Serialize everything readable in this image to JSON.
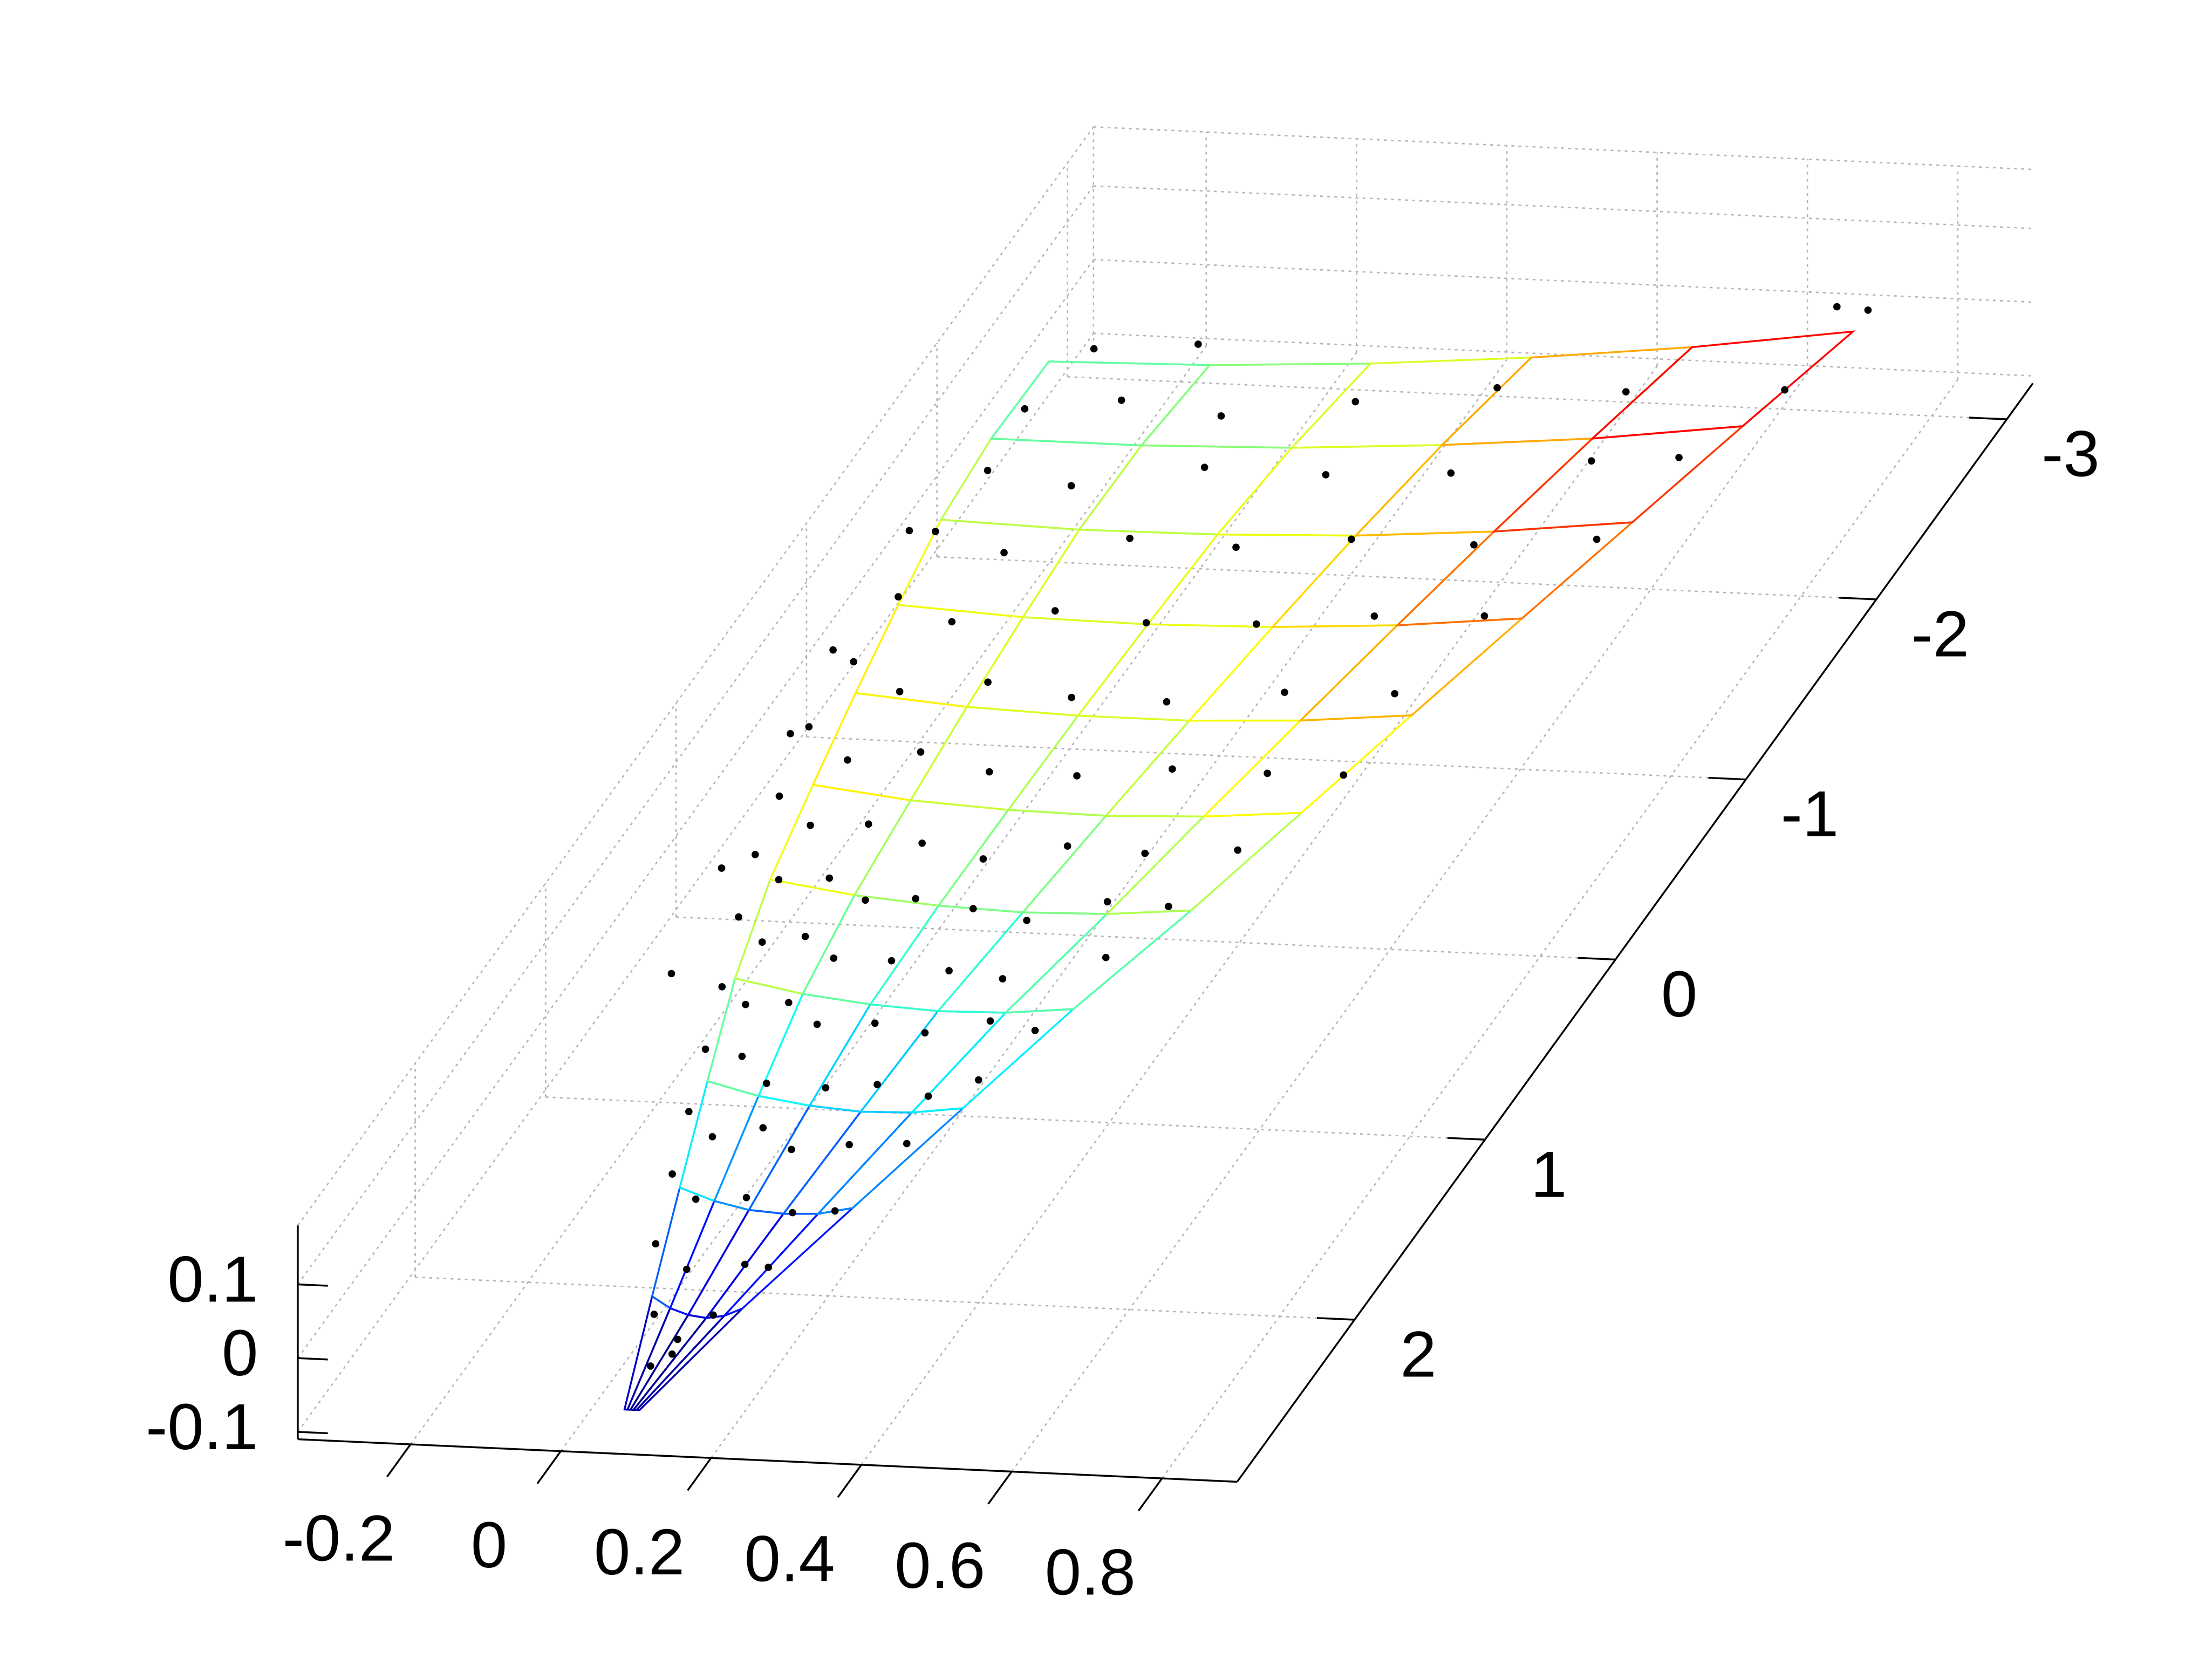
{
  "chart_data": {
    "type": "surface3d",
    "xlim": [
      -0.35,
      0.9
    ],
    "ylim": [
      -3.2,
      2.9
    ],
    "zlim": [
      -0.11,
      0.18
    ],
    "xticks": [
      -0.2,
      0,
      0.2,
      0.4,
      0.6,
      0.8
    ],
    "yticks": [
      -3,
      -2,
      -1,
      0,
      1,
      2
    ],
    "zticks": [
      -0.1,
      0,
      0.1
    ],
    "grid": true,
    "colormap": "jet",
    "surface": {
      "y": [
        2.7,
        2.2,
        1.7,
        1.2,
        0.7,
        0.2,
        -0.3,
        -0.8,
        -1.3,
        -1.8,
        -2.3,
        -2.8
      ],
      "x": [
        [
          0.05,
          0.054,
          0.058,
          0.062,
          0.066,
          0.07
        ],
        [
          0,
          0.024,
          0.048,
          0.072,
          0.096,
          0.12
        ],
        [
          -0.05,
          -0.004,
          0.042,
          0.088,
          0.134,
          0.18
        ],
        [
          -0.1,
          -0.032,
          0.036,
          0.104,
          0.172,
          0.24
        ],
        [
          -0.15,
          -0.06,
          0.03,
          0.12,
          0.21,
          0.3
        ],
        [
          -0.19,
          -0.078,
          0.034,
          0.146,
          0.258,
          0.37
        ],
        [
          -0.22,
          -0.09,
          0.04,
          0.17,
          0.3,
          0.43
        ],
        [
          -0.25,
          -0.102,
          0.046,
          0.194,
          0.342,
          0.49
        ],
        [
          -0.28,
          -0.114,
          0.052,
          0.218,
          0.384,
          0.55
        ],
        [
          -0.31,
          -0.126,
          0.058,
          0.242,
          0.426,
          0.61
        ],
        [
          -0.33,
          -0.13,
          0.07,
          0.27,
          0.47,
          0.67
        ],
        [
          -0.34,
          -0.126,
          0.088,
          0.302,
          0.516,
          0.73
        ]
      ],
      "z": [
        [
          -0.1,
          -0.1,
          -0.1,
          -0.1,
          -0.1,
          -0.1
        ],
        [
          -0.071,
          -0.086,
          -0.094,
          -0.097,
          -0.093,
          -0.082
        ],
        [
          -0.048,
          -0.064,
          -0.074,
          -0.077,
          -0.075,
          -0.065
        ],
        [
          -0.028,
          -0.045,
          -0.055,
          -0.06,
          -0.058,
          -0.049
        ],
        [
          -0.013,
          -0.03,
          -0.04,
          -0.045,
          -0.043,
          -0.034
        ],
        [
          -0.003,
          -0.019,
          -0.028,
          -0.032,
          -0.029,
          -0.019
        ],
        [
          0.002,
          -0.013,
          -0.02,
          -0.022,
          -0.017,
          -0.006
        ],
        [
          0.003,
          -0.009,
          -0.014,
          -0.014,
          -0.007,
          0.007
        ],
        [
          -0.001,
          -0.01,
          -0.012,
          -0.008,
          0.002,
          0.019
        ],
        [
          -0.009,
          -0.014,
          -0.012,
          -0.005,
          0.009,
          0.03
        ],
        [
          -0.022,
          -0.022,
          -0.016,
          -0.003,
          0.015,
          0.041
        ],
        [
          -0.04,
          -0.035,
          -0.023,
          -0.005,
          0.019,
          0.05
        ]
      ]
    },
    "scatter": {
      "color": "#000000",
      "x": [
        0.05,
        0.07,
        0.02,
        0.06,
        0.09,
        -0.03,
        0.02,
        0.08,
        0.12,
        -0.06,
        -0.02,
        0.03,
        0.1,
        0.16,
        -0.09,
        -0.05,
        0,
        0.05,
        0.12,
        0.2,
        -0.12,
        -0.08,
        -0.03,
        0.04,
        0.1,
        0.18,
        0.24,
        -0.15,
        -0.11,
        -0.07,
        -0.02,
        0.05,
        0.12,
        0.2,
        0.27,
        -0.18,
        -0.14,
        -0.1,
        -0.05,
        0.02,
        0.1,
        0.18,
        0.3,
        -0.21,
        -0.17,
        -0.12,
        -0.06,
        0,
        0.08,
        0.16,
        0.25,
        0.34,
        -0.23,
        -0.18,
        -0.12,
        -0.04,
        0.05,
        0.15,
        0.26,
        0.38,
        -0.26,
        -0.2,
        -0.12,
        -0.02,
        0.1,
        0.22,
        0.35,
        0.46,
        -0.27,
        -0.2,
        -0.1,
        0.02,
        0.15,
        0.3,
        0.45,
        -0.28,
        -0.2,
        -0.08,
        0.05,
        0.2,
        0.35,
        0.5,
        -0.3,
        -0.2,
        -0.05,
        0.1,
        0.25,
        0.42,
        0.58,
        -0.3,
        -0.18,
        -0.02,
        0.15,
        0.32,
        0.5,
        0.62,
        -0.32,
        -0.2,
        -0.05,
        0.12,
        0.3,
        0.48,
        0.7,
        -0.28,
        -0.15,
        0.7,
        0.75,
        -0.25,
        -0.22,
        -0.28,
        -0.2,
        -0.3
      ],
      "y": [
        2.5,
        2.45,
        2.3,
        2.35,
        2.25,
        2,
        2.05,
        1.95,
        2,
        1.7,
        1.75,
        1.65,
        1.7,
        1.72,
        1.4,
        1.45,
        1.35,
        1.42,
        1.38,
        1.4,
        1.1,
        1.05,
        1.15,
        1.1,
        1.05,
        1.12,
        1.08,
        0.8,
        0.85,
        0.75,
        0.82,
        0.78,
        0.8,
        0.76,
        0.82,
        0.5,
        0.55,
        0.45,
        0.52,
        0.48,
        0.5,
        0.55,
        0.45,
        0.2,
        0.25,
        0.15,
        0.22,
        0.18,
        0.2,
        0.25,
        0.15,
        0.2,
        -0.1,
        -0.05,
        -0.15,
        -0.1,
        -0.05,
        -0.12,
        -0.08,
        -0.1,
        -0.5,
        -0.45,
        -0.55,
        -0.5,
        -0.48,
        -0.52,
        -0.5,
        -0.45,
        -0.9,
        -0.85,
        -0.95,
        -0.9,
        -0.88,
        -0.92,
        -0.9,
        -1.3,
        -1.25,
        -1.35,
        -1.3,
        -1.28,
        -1.32,
        -1.3,
        -1.7,
        -1.65,
        -1.75,
        -1.7,
        -1.72,
        -1.68,
        -1.7,
        -2.1,
        -2.05,
        -2.15,
        -2.1,
        -2.08,
        -2.12,
        -2.1,
        -2.5,
        -2.55,
        -2.45,
        -2.5,
        -2.55,
        -2.5,
        -2.45,
        -2.8,
        -2.85,
        -2.85,
        -2.8,
        -0.3,
        0.4,
        -0.8,
        0.9,
        -1.5
      ],
      "z": [
        -0.09,
        -0.085,
        -0.07,
        -0.09,
        -0.08,
        -0.05,
        -0.07,
        -0.085,
        -0.075,
        -0.03,
        -0.05,
        -0.07,
        -0.075,
        -0.065,
        -0.02,
        -0.04,
        -0.05,
        -0.06,
        -0.06,
        -0.05,
        -0.01,
        -0.03,
        -0.04,
        -0.055,
        -0.06,
        -0.055,
        -0.04,
        0,
        -0.01,
        -0.03,
        -0.04,
        -0.045,
        -0.05,
        -0.04,
        -0.035,
        0.02,
        0,
        -0.015,
        -0.025,
        -0.035,
        -0.04,
        -0.035,
        -0.025,
        0.03,
        0.01,
        -0.01,
        -0.02,
        -0.025,
        -0.03,
        -0.03,
        -0.025,
        -0.015,
        0.035,
        0.01,
        -0.01,
        -0.02,
        -0.025,
        -0.02,
        -0.015,
        -0.01,
        0.03,
        0,
        -0.01,
        -0.02,
        -0.015,
        -0.01,
        -0.005,
        0.01,
        0.02,
        -0.005,
        -0.012,
        -0.015,
        -0.01,
        0,
        0.01,
        0.01,
        -0.008,
        -0.012,
        -0.01,
        0,
        0.008,
        0.02,
        0,
        -0.012,
        -0.01,
        -0.003,
        0.01,
        0.02,
        0.03,
        -0.015,
        -0.018,
        -0.01,
        0,
        0.015,
        0.03,
        0.045,
        -0.03,
        -0.025,
        -0.015,
        0,
        0.015,
        0.03,
        0.055,
        -0.02,
        -0.02,
        0.07,
        0.08,
        0.07,
        0.06,
        0.06,
        0.04,
        0.05
      ]
    }
  }
}
